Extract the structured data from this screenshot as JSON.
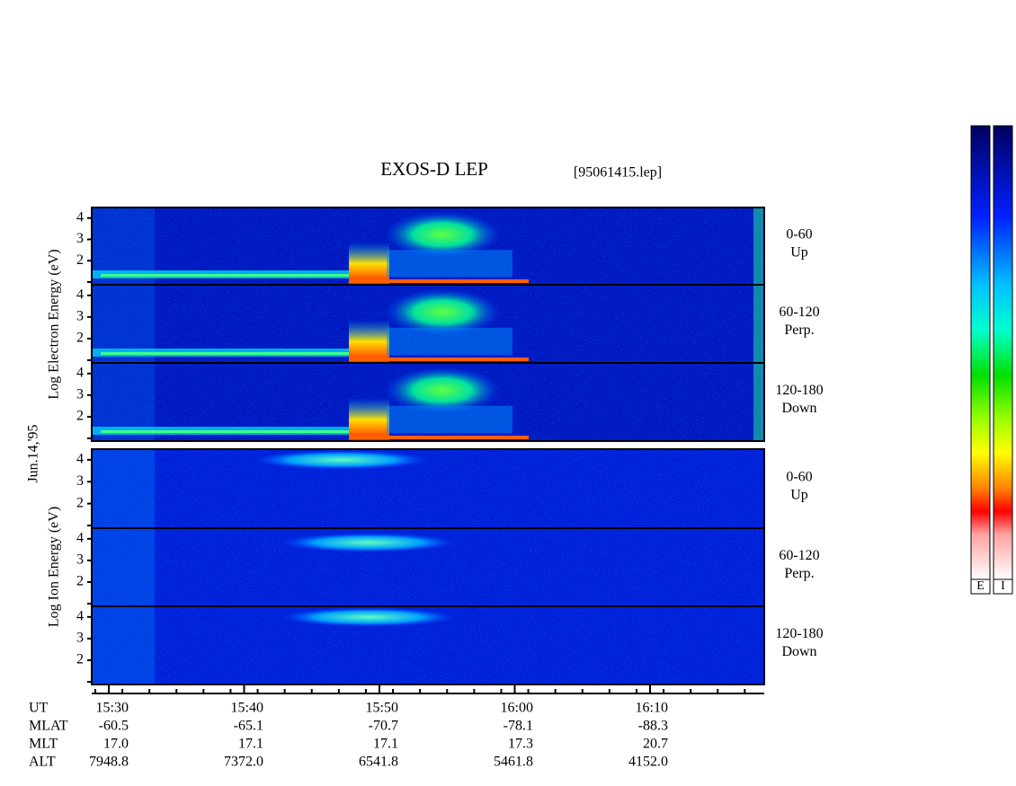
{
  "title": "EXOS-D LEP",
  "file": "[95061415.lep]",
  "date": "Jun.14,'95",
  "electron_axis_label": "Log  Electron  Energy (eV)",
  "ion_axis_label": "Log  Ion  Energy  (eV)",
  "electron_panels": [
    {
      "range": "0-60",
      "direction": "Up"
    },
    {
      "range": "60-120",
      "direction": "Perp."
    },
    {
      "range": "120-180",
      "direction": "Down"
    }
  ],
  "ion_panels": [
    {
      "range": "0-60",
      "direction": "Up"
    },
    {
      "range": "60-120",
      "direction": "Perp."
    },
    {
      "range": "120-180",
      "direction": "Down"
    }
  ],
  "y_ticks": [
    "2",
    "3",
    "4"
  ],
  "time_ticks": [
    "15:30",
    "15:40",
    "15:50",
    "16:00",
    "16:10"
  ],
  "ephemeris": {
    "labels": [
      "UT",
      "MLAT",
      "MLT",
      "ALT"
    ],
    "rows": [
      [
        "-60.5",
        "-65.1",
        "-70.7",
        "-78.1",
        "-88.3"
      ],
      [
        "17.0",
        "17.1",
        "17.1",
        "17.3",
        "20.7"
      ],
      [
        "7948.8",
        "7372.0",
        "6541.8",
        "5461.8",
        "4152.0"
      ]
    ]
  },
  "colorbar_labels": [
    "E",
    "I"
  ]
}
